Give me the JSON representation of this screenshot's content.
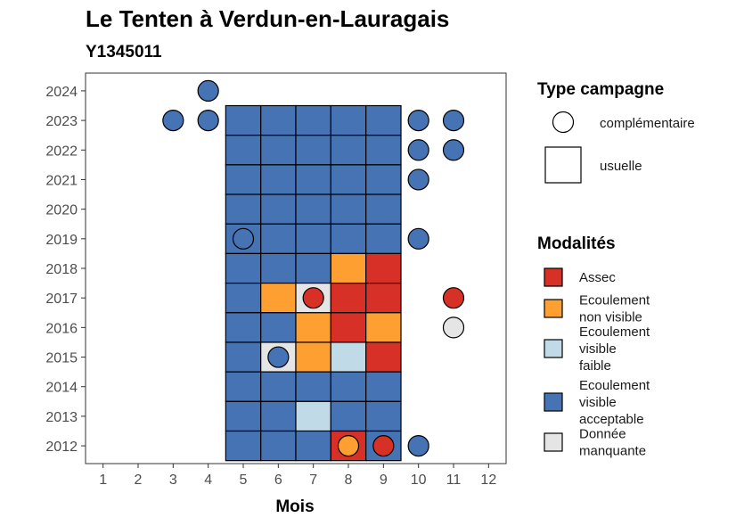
{
  "chart_data": {
    "type": "heatmap",
    "title": "Le Tenten à Verdun-en-Lauragais",
    "subtitle": "Y1345011",
    "xlabel": "Mois",
    "ylabel": "",
    "x_ticks": [
      1,
      2,
      3,
      4,
      5,
      6,
      7,
      8,
      9,
      10,
      11,
      12
    ],
    "y_ticks": [
      2012,
      2013,
      2014,
      2015,
      2016,
      2017,
      2018,
      2019,
      2020,
      2021,
      2022,
      2023,
      2024
    ],
    "xlim": [
      0.5,
      12.5
    ],
    "ylim": [
      2011.4,
      2024.6
    ],
    "grid": false,
    "legend_placement": "right",
    "legend_shape": {
      "title": "Type campagne",
      "entries": [
        {
          "key": "complementaire",
          "label": "complémentaire",
          "shape": "circle"
        },
        {
          "key": "usuelle",
          "label": "usuelle",
          "shape": "square"
        }
      ]
    },
    "legend_fill": {
      "title": "Modalités",
      "entries": [
        {
          "key": "assec",
          "label_lines": [
            "Assec"
          ],
          "color": "#D73027"
        },
        {
          "key": "nonvisible",
          "label_lines": [
            "Ecoulement",
            "non visible"
          ],
          "color": "#FDA031"
        },
        {
          "key": "faible",
          "label_lines": [
            "Ecoulement",
            "visible",
            "faible"
          ],
          "color": "#C1DAE8"
        },
        {
          "key": "acceptable",
          "label_lines": [
            "Ecoulement",
            "visible",
            "acceptable"
          ],
          "color": "#4573B4"
        },
        {
          "key": "manquante",
          "label_lines": [
            "Donnée",
            "manquante"
          ],
          "color": "#E5E5E5"
        }
      ]
    },
    "usuelle": [
      {
        "year": 2023,
        "months": [
          "acceptable",
          "acceptable",
          "acceptable",
          "acceptable",
          "acceptable"
        ]
      },
      {
        "year": 2022,
        "months": [
          "acceptable",
          "acceptable",
          "acceptable",
          "acceptable",
          "acceptable"
        ]
      },
      {
        "year": 2021,
        "months": [
          "acceptable",
          "acceptable",
          "acceptable",
          "acceptable",
          "acceptable"
        ]
      },
      {
        "year": 2020,
        "months": [
          "acceptable",
          "acceptable",
          "acceptable",
          "acceptable",
          "acceptable"
        ]
      },
      {
        "year": 2019,
        "months": [
          "acceptable",
          "acceptable",
          "acceptable",
          "acceptable",
          "acceptable"
        ]
      },
      {
        "year": 2018,
        "months": [
          "acceptable",
          "acceptable",
          "acceptable",
          "nonvisible",
          "assec"
        ]
      },
      {
        "year": 2017,
        "months": [
          "acceptable",
          "nonvisible",
          "manquante",
          "assec",
          "assec"
        ]
      },
      {
        "year": 2016,
        "months": [
          "acceptable",
          "acceptable",
          "nonvisible",
          "assec",
          "nonvisible"
        ]
      },
      {
        "year": 2015,
        "months": [
          "acceptable",
          "manquante",
          "nonvisible",
          "faible",
          "assec"
        ]
      },
      {
        "year": 2014,
        "months": [
          "acceptable",
          "acceptable",
          "acceptable",
          "acceptable",
          "acceptable"
        ]
      },
      {
        "year": 2013,
        "months": [
          "acceptable",
          "acceptable",
          "faible",
          "acceptable",
          "acceptable"
        ]
      },
      {
        "year": 2012,
        "months": [
          "acceptable",
          "acceptable",
          "acceptable",
          "assec",
          "acceptable"
        ]
      }
    ],
    "usuelle_first_month": 5,
    "complementaire": [
      {
        "year": 2024,
        "month": 4,
        "value": "acceptable"
      },
      {
        "year": 2023,
        "month": 3,
        "value": "acceptable"
      },
      {
        "year": 2023,
        "month": 4,
        "value": "acceptable"
      },
      {
        "year": 2023,
        "month": 10,
        "value": "acceptable"
      },
      {
        "year": 2023,
        "month": 11,
        "value": "acceptable"
      },
      {
        "year": 2022,
        "month": 10,
        "value": "acceptable"
      },
      {
        "year": 2022,
        "month": 11,
        "value": "acceptable"
      },
      {
        "year": 2021,
        "month": 10,
        "value": "acceptable"
      },
      {
        "year": 2019,
        "month": 5,
        "value": "acceptable"
      },
      {
        "year": 2019,
        "month": 10,
        "value": "acceptable"
      },
      {
        "year": 2017,
        "month": 7,
        "value": "assec"
      },
      {
        "year": 2017,
        "month": 11,
        "value": "assec"
      },
      {
        "year": 2016,
        "month": 11,
        "value": "manquante"
      },
      {
        "year": 2015,
        "month": 6,
        "value": "acceptable"
      },
      {
        "year": 2012,
        "month": 8,
        "value": "nonvisible"
      },
      {
        "year": 2012,
        "month": 9,
        "value": "assec"
      },
      {
        "year": 2012,
        "month": 10,
        "value": "acceptable"
      }
    ]
  }
}
